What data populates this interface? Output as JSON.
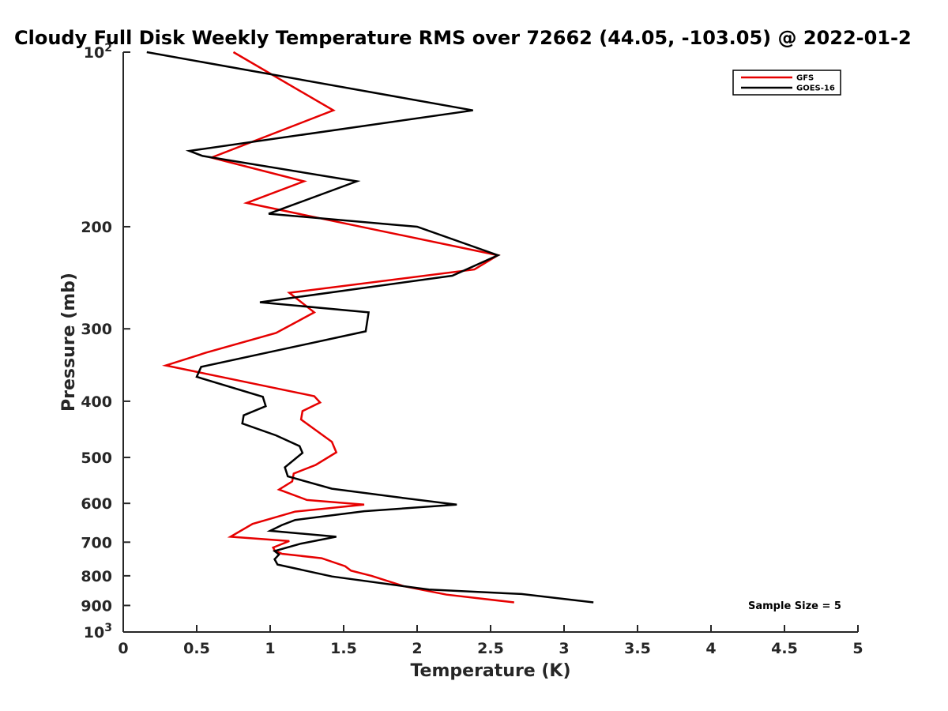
{
  "chart_data": {
    "type": "line",
    "title": "Cloudy Full Disk Weekly Temperature RMS over 72662 (44.05, -103.05) @ 2022-01-2",
    "xlabel": "Temperature (K)",
    "ylabel": "Pressure (mb)",
    "xlim": [
      0,
      5
    ],
    "ylim": [
      100,
      1000
    ],
    "yscale": "log",
    "y_reversed": true,
    "grid": false,
    "legend_position": "top-right",
    "x_ticks": [
      "0",
      "0.5",
      "1",
      "1.5",
      "2",
      "2.5",
      "3",
      "3.5",
      "4",
      "4.5",
      "5"
    ],
    "y_ticks": [
      {
        "value": 100,
        "base": "10",
        "exp": "2"
      },
      {
        "value": 200,
        "label": "200"
      },
      {
        "value": 300,
        "label": "300"
      },
      {
        "value": 400,
        "label": "400"
      },
      {
        "value": 500,
        "label": "500"
      },
      {
        "value": 600,
        "label": "600"
      },
      {
        "value": 700,
        "label": "700"
      },
      {
        "value": 800,
        "label": "800"
      },
      {
        "value": 900,
        "label": "900"
      },
      {
        "value": 1000,
        "base": "10",
        "exp": "3"
      }
    ],
    "series": [
      {
        "name": "GFS",
        "color": "#e60000",
        "x": [
          0.75,
          1.43,
          0.6,
          1.23,
          0.84,
          2.55,
          2.39,
          1.13,
          1.3,
          1.04,
          0.56,
          0.29,
          1.3,
          1.34,
          1.22,
          1.21,
          1.42,
          1.45,
          1.31,
          1.16,
          1.15,
          1.06,
          1.25,
          1.64,
          1.17,
          0.88,
          0.73,
          1.13,
          1.02,
          1.03,
          1.08,
          1.35,
          1.51,
          1.55,
          1.69,
          1.91,
          2.2,
          2.66
        ],
        "y": [
          100,
          126,
          152,
          167,
          182,
          224,
          237,
          260,
          281,
          305,
          330,
          347,
          392,
          402,
          416,
          430,
          470,
          490,
          515,
          533,
          550,
          568,
          592,
          603,
          620,
          651,
          685,
          697,
          715,
          723,
          733,
          746,
          770,
          784,
          800,
          834,
          862,
          889
        ]
      },
      {
        "name": "GOES-16",
        "color": "#000000",
        "x": [
          0.16,
          2.38,
          0.45,
          0.54,
          1.59,
          0.99,
          2.0,
          2.55,
          2.24,
          0.93,
          1.67,
          1.65,
          0.53,
          0.5,
          0.95,
          0.97,
          0.82,
          0.81,
          1.04,
          1.2,
          1.22,
          1.1,
          1.12,
          1.42,
          1.9,
          2.27,
          1.64,
          1.17,
          1.08,
          1.0,
          1.45,
          1.21,
          1.03,
          1.06,
          1.03,
          1.05,
          1.42,
          2.08,
          2.71,
          3.2
        ],
        "y": [
          100,
          126,
          148,
          151,
          167,
          190,
          200,
          224,
          243,
          270,
          281,
          303,
          349,
          363,
          393,
          408,
          423,
          437,
          458,
          478,
          491,
          520,
          539,
          566,
          587,
          603,
          619,
          641,
          654,
          669,
          685,
          704,
          725,
          735,
          749,
          765,
          802,
          845,
          860,
          889
        ]
      }
    ],
    "annotations": [
      "Sample Size = 5"
    ]
  }
}
